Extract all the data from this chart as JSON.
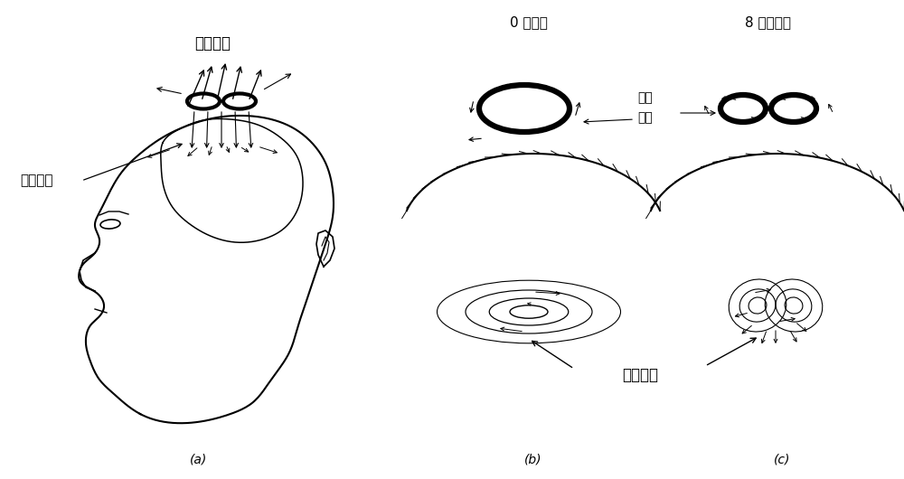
{
  "bg_color": "#ffffff",
  "text_color": "#000000",
  "title_a": "磁场方向",
  "label_a_left": "刺激部位",
  "label_b_top_left": "0 型线圈",
  "label_b_top_right": "8 字型线圈",
  "label_current_1": "电流",
  "label_current_2": "方向",
  "label_induced": "诱导电流",
  "label_a": "(a)",
  "label_b": "(b)",
  "label_c": "(c)"
}
